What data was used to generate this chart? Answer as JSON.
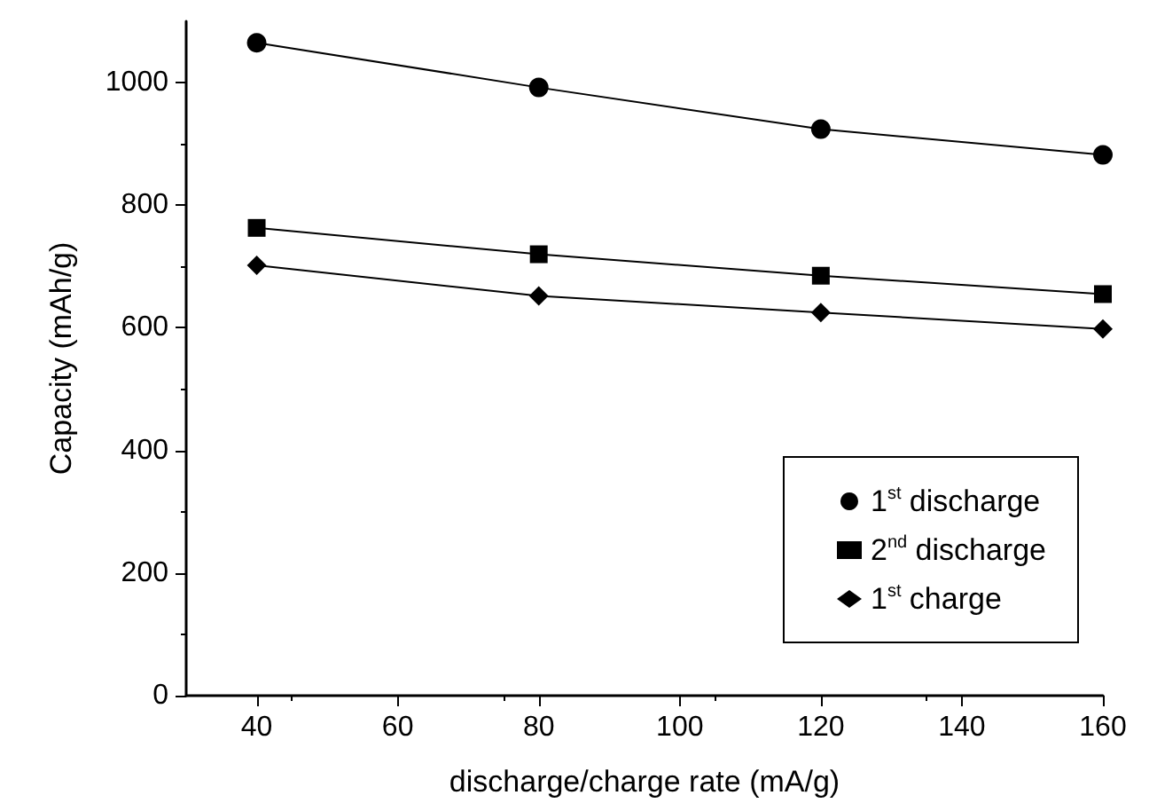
{
  "chart_data": {
    "type": "line",
    "xlabel": "discharge/charge rate (mA/g)",
    "ylabel": "Capacity (mAh/g)",
    "x": [
      40,
      80,
      120,
      160
    ],
    "series": [
      {
        "name": "1$^{st}$ discharge",
        "color": "#000000",
        "marker": "circle",
        "values": [
          1065,
          992,
          924,
          882
        ]
      },
      {
        "name": "2$^{nd}$ discharge",
        "color": "#000000",
        "marker": "square",
        "values": [
          763,
          720,
          685,
          655
        ]
      },
      {
        "name": "1$^{st}$ charge",
        "color": "#000000",
        "marker": "diamond",
        "values": [
          702,
          652,
          625,
          598
        ]
      }
    ],
    "xlim": [
      30,
      160
    ],
    "xticks": [
      40,
      60,
      80,
      100,
      120,
      140,
      160
    ],
    "ylim": [
      0,
      1100
    ],
    "yticks": [
      0,
      200,
      400,
      600,
      800,
      1000
    ],
    "grid": false,
    "legend": "bottom right",
    "line_style": "solid"
  }
}
